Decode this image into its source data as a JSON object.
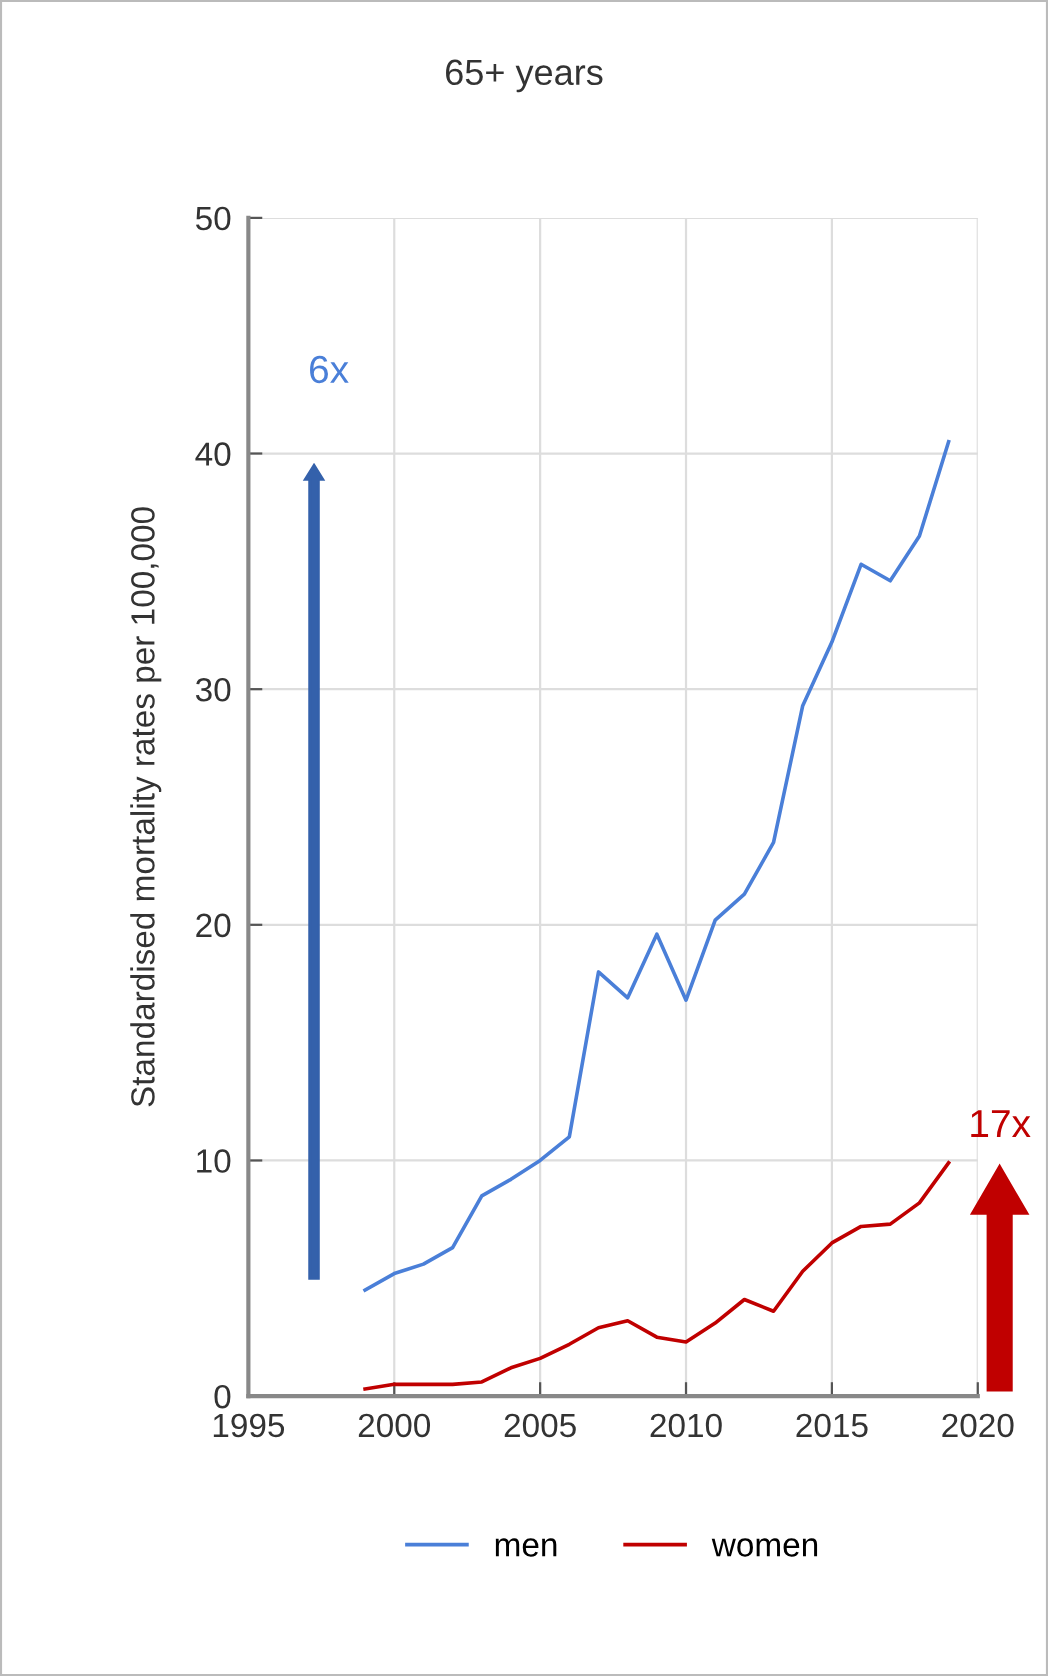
{
  "chart_data": {
    "type": "line",
    "title": "65+ years",
    "ylabel": "Standardised mortality rates per 100,000",
    "x": [
      1999,
      2000,
      2001,
      2002,
      2003,
      2004,
      2005,
      2006,
      2007,
      2008,
      2009,
      2010,
      2011,
      2012,
      2013,
      2014,
      2015,
      2016,
      2017,
      2018,
      2019
    ],
    "series": [
      {
        "name": "men",
        "color": "#4a7fd8",
        "values": [
          4.5,
          5.2,
          5.6,
          6.3,
          8.5,
          9.2,
          10.0,
          11.0,
          18.0,
          16.9,
          19.6,
          16.8,
          20.2,
          21.3,
          23.5,
          29.3,
          32.0,
          35.3,
          34.6,
          36.5,
          40.5
        ]
      },
      {
        "name": "women",
        "color": "#c00000",
        "values": [
          0.3,
          0.5,
          0.5,
          0.5,
          0.6,
          1.2,
          1.6,
          2.2,
          2.9,
          3.2,
          2.5,
          2.3,
          3.1,
          4.1,
          3.6,
          5.3,
          6.5,
          7.2,
          7.3,
          8.2,
          9.9
        ]
      }
    ],
    "annotations": [
      "6x",
      "17x"
    ],
    "xlim": [
      1995,
      2020
    ],
    "xticks": [
      1995,
      2000,
      2005,
      2010,
      2015,
      2020
    ],
    "ylim": [
      0,
      50
    ],
    "yticks": [
      0,
      10,
      20,
      30,
      40,
      50
    ],
    "grid": true,
    "legend": "bottom",
    "marker": "none",
    "line_style": "solid"
  }
}
